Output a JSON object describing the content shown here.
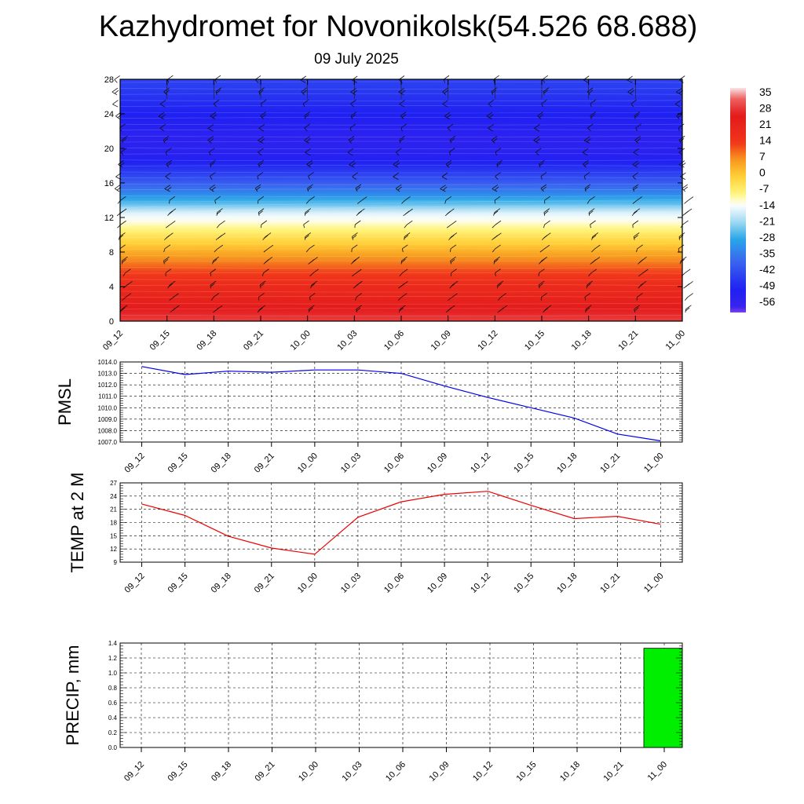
{
  "header": {
    "title": "Kazhydromet for Novonikolsk(54.526 68.688)",
    "date": "09 July 2025"
  },
  "colors": {
    "pmsl_line": "#0000ee",
    "temp_line": "#ee0000",
    "precip_bar": "#00ee00"
  },
  "chart_data": [
    {
      "type": "heatmap",
      "name_hint": "temperature-cross-section",
      "x_ticks": [
        "09_12",
        "09_15",
        "09_18",
        "09_21",
        "10_00",
        "10_03",
        "10_06",
        "10_09",
        "10_12",
        "10_15",
        "10_18",
        "10_21",
        "11_00"
      ],
      "y_ticks": [
        0,
        4,
        8,
        12,
        16,
        20,
        24,
        28
      ],
      "ylim": [
        0,
        28
      ],
      "colorbar_labels": [
        "35",
        "28",
        "21",
        "14",
        "7",
        "0",
        "-7",
        "-14",
        "-21",
        "-28",
        "-35",
        "-42",
        "-49",
        "-56"
      ],
      "colorbar_range": [
        -60,
        38
      ],
      "overlay": "wind barbs"
    },
    {
      "type": "line",
      "ylabel": "PMSL",
      "x": [
        "09_12",
        "09_15",
        "09_18",
        "09_21",
        "10_00",
        "10_03",
        "10_06",
        "10_09",
        "10_12",
        "10_15",
        "10_18",
        "10_21",
        "11_00"
      ],
      "values": [
        1013.6,
        1012.9,
        1013.2,
        1013.1,
        1013.3,
        1013.3,
        1013.0,
        1011.9,
        1010.9,
        1010.0,
        1009.1,
        1007.7,
        1007.1
      ],
      "y_ticks": [
        "1007.0",
        "1008.0",
        "1009.0",
        "1010.0",
        "1011.0",
        "1012.0",
        "1013.0",
        "1014.0"
      ],
      "ylim": [
        1007,
        1014
      ],
      "grid": true
    },
    {
      "type": "line",
      "ylabel": "TEMP at 2 M",
      "x": [
        "09_12",
        "09_15",
        "09_18",
        "09_21",
        "10_00",
        "10_03",
        "10_06",
        "10_09",
        "10_12",
        "10_15",
        "10_18",
        "10_21",
        "11_00"
      ],
      "values": [
        22.2,
        19.6,
        14.9,
        12.2,
        10.8,
        19.2,
        22.7,
        24.4,
        25.1,
        21.9,
        18.9,
        19.4,
        17.6
      ],
      "y_ticks": [
        "9",
        "12",
        "15",
        "18",
        "21",
        "24",
        "27"
      ],
      "ylim": [
        9,
        27
      ],
      "grid": true
    },
    {
      "type": "bar",
      "ylabel": "PRECIP, mm",
      "categories": [
        "09_12",
        "09_15",
        "09_18",
        "09_21",
        "10_00",
        "10_03",
        "10_06",
        "10_09",
        "10_12",
        "10_15",
        "10_18",
        "10_21",
        "11_00"
      ],
      "values": [
        0,
        0,
        0,
        0,
        0,
        0,
        0,
        0,
        0,
        0,
        0,
        0,
        1.33
      ],
      "y_ticks": [
        "0.0",
        "0.2",
        "0.4",
        "0.6",
        "0.8",
        "1.0",
        "1.2",
        "1.4"
      ],
      "ylim": [
        0,
        1.4
      ],
      "grid": true
    }
  ]
}
